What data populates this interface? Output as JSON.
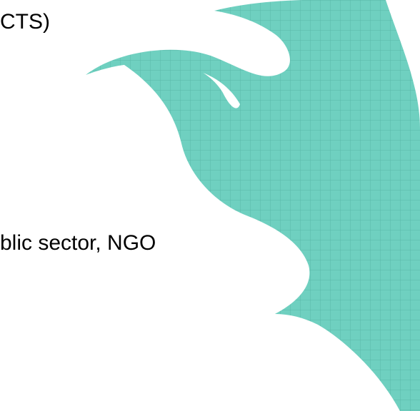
{
  "slide": {
    "lines": [
      "CTS)",
      "blic sector, NGO"
    ]
  }
}
